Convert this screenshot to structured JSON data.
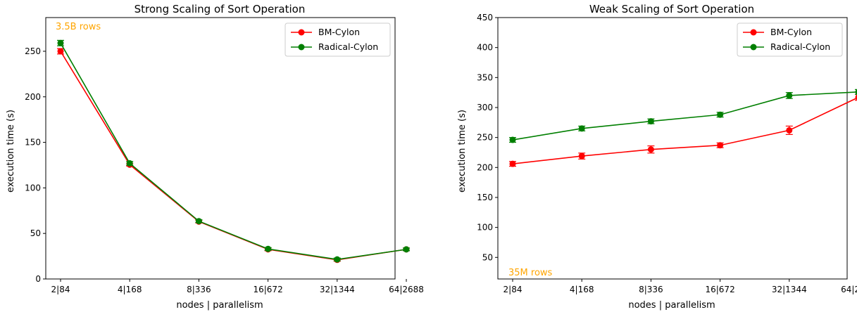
{
  "chart_data": [
    {
      "type": "line",
      "title": "Strong Scaling of Sort Operation",
      "xlabel": "nodes | parallelism",
      "ylabel": "execution time (s)",
      "categories": [
        "2|84",
        "4|168",
        "8|336",
        "16|672",
        "32|1344",
        "64|2688"
      ],
      "ylim": [
        0,
        287
      ],
      "yticks": [
        0,
        50,
        100,
        150,
        200,
        250
      ],
      "annotation": "3.5B rows",
      "annotation_position": "top-left",
      "legend_position": "top-right",
      "grid": false,
      "series": [
        {
          "name": "BM-Cylon",
          "color": "#ff0000",
          "values": [
            250,
            125.5,
            63,
            32.5,
            21,
            32.5
          ],
          "errors": [
            3,
            1.5,
            1.5,
            1.5,
            1.5,
            1.5
          ]
        },
        {
          "name": "Radical-Cylon",
          "color": "#007f00",
          "values": [
            259,
            127,
            63.5,
            33,
            21.5,
            32.5
          ],
          "errors": [
            3,
            2,
            1.5,
            1.5,
            1.5,
            1.5
          ]
        }
      ]
    },
    {
      "type": "line",
      "title": "Weak Scaling of Sort Operation",
      "xlabel": "nodes | parallelism",
      "ylabel": "execution time (s)",
      "categories": [
        "2|84",
        "4|168",
        "8|336",
        "16|672",
        "32|1344",
        "64|2688"
      ],
      "ylim": [
        14,
        450
      ],
      "yticks": [
        50,
        100,
        150,
        200,
        250,
        300,
        350,
        400,
        450
      ],
      "annotation": "35M rows",
      "annotation_position": "bottom-left",
      "legend_position": "top-right",
      "grid": false,
      "series": [
        {
          "name": "BM-Cylon",
          "color": "#ff0000",
          "values": [
            206,
            219,
            230,
            237,
            262,
            317
          ],
          "errors": [
            4,
            5,
            6,
            4,
            7,
            5
          ]
        },
        {
          "name": "Radical-Cylon",
          "color": "#007f00",
          "values": [
            246,
            265,
            277,
            288,
            320,
            326
          ],
          "errors": [
            4,
            4,
            4,
            4,
            5,
            4
          ]
        }
      ]
    }
  ]
}
